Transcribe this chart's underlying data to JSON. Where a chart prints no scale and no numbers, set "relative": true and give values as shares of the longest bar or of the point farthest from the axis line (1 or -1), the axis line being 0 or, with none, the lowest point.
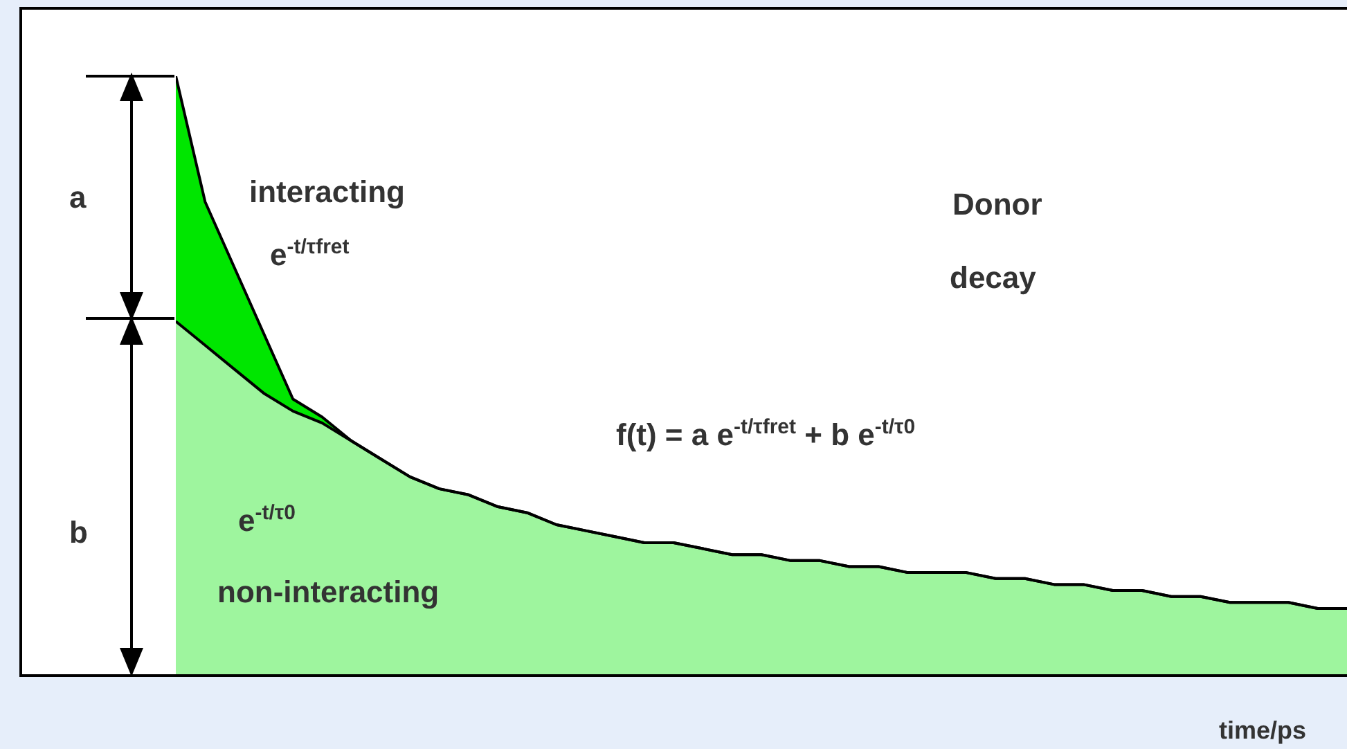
{
  "chart_data": {
    "type": "area",
    "stacked": true,
    "relative": true,
    "xlabel": "time/ps",
    "categories": [
      null,
      null,
      null,
      null,
      null,
      null,
      null,
      null,
      null,
      null,
      null,
      null,
      null,
      null,
      null,
      null,
      null,
      null,
      null,
      null,
      null,
      null,
      null,
      null,
      null,
      null,
      null,
      null,
      null,
      null,
      null,
      null,
      null,
      null,
      null,
      null,
      null,
      null,
      null,
      null,
      null
    ],
    "series": [
      {
        "color": "#9ef59e",
        "values": [
          0.59,
          0.55,
          0.51,
          0.47,
          0.44,
          0.42,
          0.39,
          0.36,
          0.33,
          0.31,
          0.3,
          0.28,
          0.27,
          0.25,
          0.24,
          0.23,
          0.22,
          0.22,
          0.21,
          0.2,
          0.2,
          0.19,
          0.19,
          0.18,
          0.18,
          0.17,
          0.17,
          0.17,
          0.16,
          0.16,
          0.15,
          0.15,
          0.14,
          0.14,
          0.13,
          0.13,
          0.12,
          0.12,
          0.12,
          0.11,
          0.11
        ]
      },
      {
        "color": "#00e600",
        "values": [
          0.41,
          0.24,
          0.17,
          0.1,
          0.02,
          0.01,
          0,
          0,
          0,
          0,
          0,
          0,
          0,
          0,
          0,
          0,
          0,
          0,
          0,
          0,
          0,
          0,
          0,
          0,
          0,
          0,
          0,
          0,
          0,
          0,
          0,
          0,
          0,
          0,
          0,
          0,
          0,
          0,
          0,
          0,
          0
        ]
      }
    ],
    "annotations": [
      "a",
      "b",
      "interacting",
      "e$^{-t/τfret}$",
      "Donor",
      "decay",
      "f(t) = a e$^{-t/τfret}$ + b e$^{-t/τ0}$",
      "e$^{-t/τ0}$",
      "non-interacting"
    ]
  }
}
